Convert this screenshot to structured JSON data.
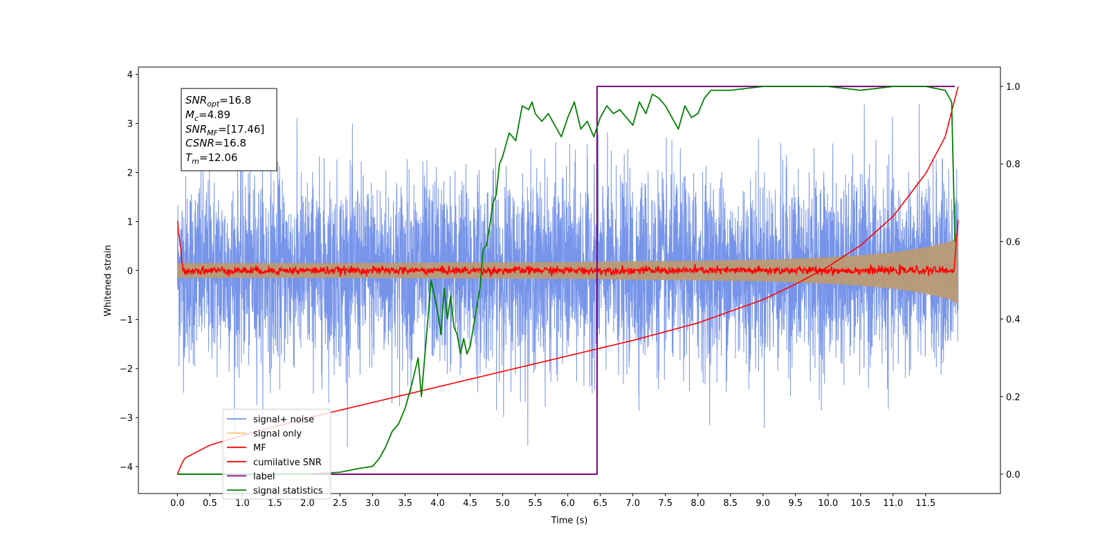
{
  "chart_data": {
    "type": "line",
    "xlabel": "Time (s)",
    "ylabel": "Whitened strain",
    "xlim": [
      -0.6,
      12.65
    ],
    "ylim": [
      -4.55,
      4.15
    ],
    "y2lim": [
      -0.05,
      1.05
    ],
    "x_ticks": [
      0.0,
      0.5,
      1.0,
      1.5,
      2.0,
      2.5,
      3.0,
      3.5,
      4.0,
      4.5,
      5.0,
      5.5,
      6.0,
      6.5,
      7.0,
      7.5,
      8.0,
      8.5,
      9.0,
      9.5,
      10.0,
      10.5,
      11.0,
      11.5
    ],
    "x_tick_labels": [
      "0.0",
      "0.5",
      "1.0",
      "1.5",
      "2.0",
      "2.5",
      "3.0",
      "3.5",
      "4.0",
      "4.5",
      "5.0",
      "5.5",
      "6.0",
      "6.5",
      "7.0",
      "7.5",
      "8.0",
      "8.5",
      "9.0",
      "9.5",
      "10.0",
      "10.5",
      "11.0",
      "11.5"
    ],
    "y_ticks": [
      -4,
      -3,
      -2,
      -1,
      0,
      1,
      2,
      3,
      4
    ],
    "y_tick_labels": [
      "−4",
      "−3",
      "−2",
      "−1",
      "0",
      "1",
      "2",
      "3",
      "4"
    ],
    "y2_ticks": [
      0.0,
      0.2,
      0.4,
      0.6,
      0.8,
      1.0
    ],
    "y2_tick_labels": [
      "0.0",
      "0.2",
      "0.4",
      "0.6",
      "0.8",
      "1.0"
    ],
    "grid": false,
    "legend_position": "lower-left",
    "legend": [
      {
        "label": "signal+ noise",
        "color": "#6f8ee8"
      },
      {
        "label": "signal only",
        "color": "#ffc468"
      },
      {
        "label": "MF",
        "color": "#ff0000"
      },
      {
        "label": "cumilative SNR",
        "color": "#ff0000"
      },
      {
        "label": "label",
        "color": "#800080"
      },
      {
        "label": "signal statistics",
        "color": "#008000"
      }
    ],
    "annotation": {
      "snr_opt": {
        "symbol": "SNR",
        "sub": "opt",
        "value": "=16.8"
      },
      "mc": {
        "symbol": "M",
        "sub": "c",
        "value": "=4.89"
      },
      "snr_mf": {
        "symbol": "SNR",
        "sub": "MF",
        "value": "=[17.46]"
      },
      "csnr": {
        "symbol": "CSNR",
        "sub": "",
        "value": "=16.8"
      },
      "tm": {
        "symbol": "T",
        "sub": "m",
        "value": "=12.06"
      }
    },
    "series": [
      {
        "name": "signal+ noise",
        "color": "#6f8ee8",
        "axis": "left",
        "description_range": [
          -3.6,
          3.8
        ],
        "t_start": 0.0,
        "t_end": 12.0
      },
      {
        "name": "signal only",
        "color": "#ffc468",
        "axis": "left",
        "envelope": {
          "x": [
            0,
            2,
            4,
            6,
            7,
            8,
            9,
            10,
            10.5,
            11,
            11.5,
            11.9,
            12.0
          ],
          "half_width": [
            0.15,
            0.15,
            0.16,
            0.17,
            0.19,
            0.2,
            0.22,
            0.27,
            0.31,
            0.37,
            0.47,
            0.6,
            0.7
          ]
        }
      },
      {
        "name": "MF",
        "color": "#ff0000",
        "axis": "left",
        "x": [
          0.0,
          0.03,
          0.08,
          11.93,
          11.98,
          12.0
        ],
        "y": [
          1.0,
          0.15,
          0.0,
          0.0,
          0.2,
          1.0
        ]
      },
      {
        "name": "cumilative SNR",
        "color": "#ff0000",
        "axis": "right",
        "x": [
          0.0,
          0.1,
          0.5,
          1.0,
          2.0,
          3.0,
          4.0,
          5.0,
          6.0,
          7.0,
          8.0,
          9.0,
          9.5,
          10.0,
          10.5,
          11.0,
          11.5,
          11.8,
          12.0
        ],
        "y": [
          0.0,
          0.04,
          0.075,
          0.1,
          0.145,
          0.185,
          0.225,
          0.265,
          0.305,
          0.345,
          0.39,
          0.45,
          0.49,
          0.535,
          0.59,
          0.665,
          0.775,
          0.87,
          1.0
        ]
      },
      {
        "name": "label",
        "color": "#800080",
        "axis": "right",
        "x": [
          0.0,
          6.45,
          6.45,
          11.95
        ],
        "y": [
          0.0,
          0.0,
          1.0,
          1.0
        ]
      },
      {
        "name": "signal statistics",
        "color": "#008000",
        "axis": "right",
        "x": [
          0.0,
          2.0,
          2.5,
          2.8,
          3.0,
          3.1,
          3.2,
          3.3,
          3.4,
          3.5,
          3.6,
          3.7,
          3.75,
          3.8,
          3.9,
          4.0,
          4.05,
          4.1,
          4.15,
          4.2,
          4.25,
          4.3,
          4.35,
          4.4,
          4.45,
          4.5,
          4.55,
          4.6,
          4.65,
          4.7,
          4.75,
          4.8,
          4.85,
          4.9,
          4.95,
          5.0,
          5.05,
          5.1,
          5.2,
          5.3,
          5.4,
          5.45,
          5.5,
          5.6,
          5.7,
          5.8,
          5.9,
          6.0,
          6.1,
          6.2,
          6.3,
          6.4,
          6.5,
          6.6,
          6.7,
          6.8,
          6.9,
          7.0,
          7.1,
          7.2,
          7.3,
          7.4,
          7.5,
          7.6,
          7.7,
          7.8,
          7.9,
          8.0,
          8.1,
          8.2,
          8.3,
          8.5,
          9.0,
          9.5,
          10.0,
          10.5,
          11.0,
          11.5,
          11.8,
          11.9,
          11.95
        ],
        "y": [
          0.0,
          0.0,
          0.005,
          0.015,
          0.02,
          0.04,
          0.07,
          0.11,
          0.13,
          0.17,
          0.23,
          0.3,
          0.2,
          0.3,
          0.5,
          0.42,
          0.36,
          0.48,
          0.4,
          0.46,
          0.38,
          0.36,
          0.31,
          0.35,
          0.31,
          0.33,
          0.38,
          0.43,
          0.48,
          0.58,
          0.59,
          0.64,
          0.7,
          0.72,
          0.8,
          0.82,
          0.85,
          0.88,
          0.86,
          0.95,
          0.94,
          0.96,
          0.93,
          0.91,
          0.93,
          0.9,
          0.87,
          0.92,
          0.96,
          0.89,
          0.91,
          0.87,
          0.92,
          0.95,
          0.93,
          0.94,
          0.92,
          0.9,
          0.96,
          0.93,
          0.98,
          0.97,
          0.95,
          0.92,
          0.89,
          0.95,
          0.92,
          0.93,
          0.97,
          0.99,
          0.99,
          0.99,
          1.0,
          1.0,
          1.0,
          0.99,
          1.0,
          1.0,
          0.99,
          0.96,
          0.6
        ]
      }
    ]
  }
}
